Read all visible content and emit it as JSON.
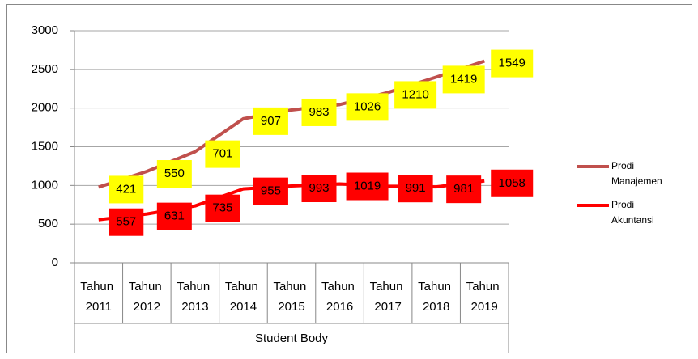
{
  "chart_data": {
    "type": "line",
    "stacked": true,
    "categories": [
      "Tahun 2011",
      "Tahun 2012",
      "Tahun 2013",
      "Tahun 2014",
      "Tahun 2015",
      "Tahun 2016",
      "Tahun 2017",
      "Tahun 2018",
      "Tahun 2019"
    ],
    "group_label": "Student Body",
    "series": [
      {
        "name": "Prodi Manajemen",
        "color": "#c0504d",
        "label_color": "#ffff00",
        "values": [
          421,
          550,
          701,
          907,
          983,
          1026,
          1210,
          1419,
          1549
        ]
      },
      {
        "name": "Prodi Akuntansi",
        "color": "#ff0000",
        "label_color": "#ff0000",
        "values": [
          557,
          631,
          735,
          955,
          993,
          1019,
          991,
          981,
          1058
        ]
      }
    ],
    "ylim": [
      0,
      3000
    ],
    "yticks": [
      0,
      500,
      1000,
      1500,
      2000,
      2500,
      3000
    ],
    "grid": true,
    "legend": "right"
  }
}
